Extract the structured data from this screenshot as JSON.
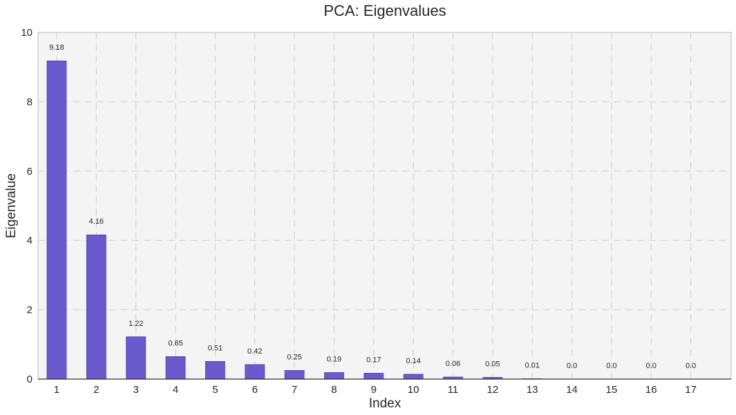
{
  "chart_data": {
    "type": "bar",
    "title": "PCA: Eigenvalues",
    "xlabel": "Index",
    "ylabel": "Eigenvalue",
    "categories": [
      "1",
      "2",
      "3",
      "4",
      "5",
      "6",
      "7",
      "8",
      "9",
      "10",
      "11",
      "12",
      "13",
      "14",
      "15",
      "16",
      "17"
    ],
    "values": [
      9.18,
      4.16,
      1.22,
      0.65,
      0.51,
      0.42,
      0.25,
      0.19,
      0.17,
      0.14,
      0.06,
      0.05,
      0.01,
      0.0,
      0.0,
      0.0,
      0.0
    ],
    "value_labels": [
      "9.18",
      "4.16",
      "1.22",
      "0.65",
      "0.51",
      "0.42",
      "0.25",
      "0.19",
      "0.17",
      "0.14",
      "0.06",
      "0.05",
      "0.01",
      "0.0",
      "0.0",
      "0.0",
      "0.0"
    ],
    "ylim": [
      0,
      10
    ],
    "yticks": [
      "0",
      "2",
      "4",
      "6",
      "8",
      "10"
    ],
    "grid": true,
    "colors": {
      "bar": "#6a5acd",
      "bar_edge": "#4d3fa8",
      "plot_bg": "#f4f4f4",
      "grid": "#cfcfcf"
    }
  }
}
